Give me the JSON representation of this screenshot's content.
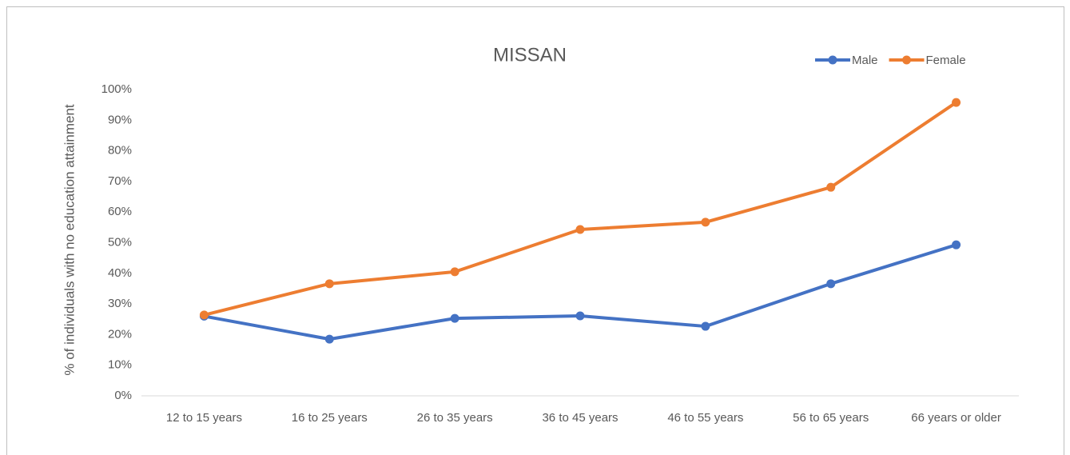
{
  "chart_data": {
    "type": "line",
    "title": "MISSAN",
    "y_label": "% of individuals with no education attainment",
    "categories": [
      "12 to 15 years",
      "16 to 25 years",
      "26 to 35 years",
      "36 to 45 years",
      "46 to 55 years",
      "56 to 65 years",
      "66 years or older"
    ],
    "series": [
      {
        "name": "Male",
        "color": "#4472c4",
        "values": [
          26,
          18.5,
          25.3,
          26.1,
          22.7,
          36.6,
          49.3
        ]
      },
      {
        "name": "Female",
        "color": "#ed7d31",
        "values": [
          26.4,
          36.6,
          40.5,
          54.3,
          56.7,
          68.1,
          95.8
        ]
      }
    ],
    "ylim": [
      0,
      100
    ],
    "yticks": [
      {
        "value": 0,
        "label": "0%"
      },
      {
        "value": 10,
        "label": "10%"
      },
      {
        "value": 20,
        "label": "20%"
      },
      {
        "value": 30,
        "label": "30%"
      },
      {
        "value": 40,
        "label": "40%"
      },
      {
        "value": 50,
        "label": "50%"
      },
      {
        "value": 60,
        "label": "60%"
      },
      {
        "value": 70,
        "label": "70%"
      },
      {
        "value": 80,
        "label": "80%"
      },
      {
        "value": 90,
        "label": "90%"
      },
      {
        "value": 100,
        "label": "100%"
      }
    ],
    "grid": false,
    "legend": "top-right"
  }
}
